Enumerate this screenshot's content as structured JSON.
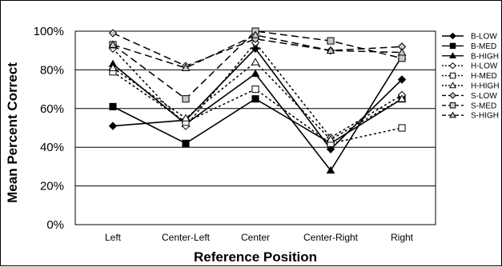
{
  "chart_data": {
    "type": "line",
    "title": "",
    "xlabel": "Reference Position",
    "ylabel": "Mean Percent Correct",
    "categories": [
      "Left",
      "Center-Left",
      "Center",
      "Center-Right",
      "Right"
    ],
    "ylim": [
      0,
      100
    ],
    "yticks": [
      0,
      20,
      40,
      60,
      80,
      100
    ],
    "ytick_labels": [
      "0%",
      "20%",
      "40%",
      "60%",
      "80%",
      "100%"
    ],
    "grid": "horizontal",
    "legend_position": "right",
    "series": [
      {
        "name": "B-LOW",
        "values": [
          51,
          54,
          91,
          39,
          75
        ],
        "style": "solid",
        "marker": "diamond",
        "marker_fill": "#000000",
        "color": "#000000"
      },
      {
        "name": "B-MED",
        "values": [
          61,
          42,
          65,
          42,
          65
        ],
        "style": "solid",
        "marker": "square",
        "marker_fill": "#000000",
        "color": "#000000"
      },
      {
        "name": "B-HIGH",
        "values": [
          83,
          52,
          78,
          28,
          87
        ],
        "style": "solid",
        "marker": "triangle",
        "marker_fill": "#000000",
        "color": "#000000"
      },
      {
        "name": "H-LOW",
        "values": [
          91,
          51,
          94,
          45,
          67
        ],
        "style": "dotted",
        "marker": "diamond",
        "marker_fill": "#ffffff",
        "color": "#000000"
      },
      {
        "name": "H-MED",
        "values": [
          79,
          53,
          70,
          42,
          50
        ],
        "style": "dotted",
        "marker": "square",
        "marker_fill": "#ffffff",
        "color": "#000000"
      },
      {
        "name": "H-HIGH",
        "values": [
          81,
          55,
          84,
          44,
          65
        ],
        "style": "dotted",
        "marker": "triangle",
        "marker_fill": "#ffffff",
        "color": "#000000"
      },
      {
        "name": "S-LOW",
        "values": [
          99,
          82,
          96,
          90,
          92
        ],
        "style": "dashed",
        "marker": "diamond",
        "marker_fill": "#c8c8c8",
        "color": "#000000"
      },
      {
        "name": "S-MED",
        "values": [
          93,
          65,
          100,
          95,
          86
        ],
        "style": "dashed",
        "marker": "square",
        "marker_fill": "#c8c8c8",
        "color": "#000000"
      },
      {
        "name": "S-HIGH",
        "values": [
          93,
          81,
          98,
          90,
          89
        ],
        "style": "dashed",
        "marker": "triangle",
        "marker_fill": "#c8c8c8",
        "color": "#000000"
      }
    ]
  }
}
